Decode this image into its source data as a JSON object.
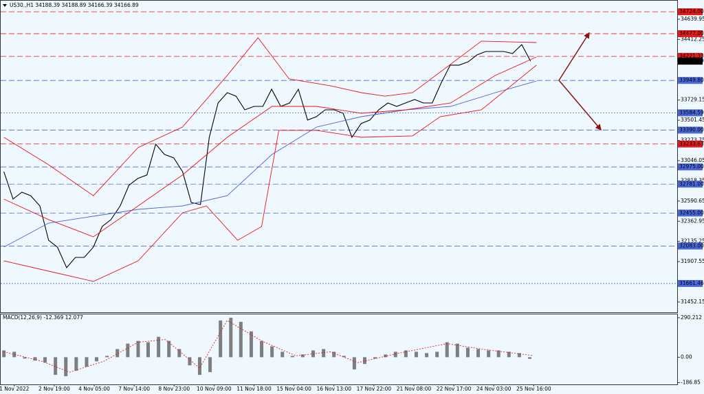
{
  "chart_data": [
    {
      "type": "line",
      "title": "US30.,H1  34188.39 34188.89 34166.39 34166.89",
      "xlim": [
        -0.34,
        16.59
      ],
      "ylim": [
        31336,
        34818
      ],
      "yticks": [
        34639.95,
        34412.25,
        33729.15,
        33501.45,
        33273.75,
        33046.05,
        32818.35,
        32590.65,
        32362.95,
        32135.25,
        31907.55,
        31452.15
      ],
      "series": [
        {
          "color": "#000000",
          "dash": "solid",
          "x": [
            -0.26,
            -0.03,
            0.19,
            0.41,
            0.64,
            0.86,
            1.08,
            1.31,
            1.53,
            1.75,
            1.98,
            2.2,
            2.42,
            2.65,
            2.87,
            3.09,
            3.32,
            3.54,
            3.76,
            3.99,
            4.21,
            4.43,
            4.66,
            4.88,
            5.1,
            5.33,
            5.55,
            5.77,
            6.0,
            6.22,
            6.44,
            6.67,
            6.89,
            7.11,
            7.34,
            7.56,
            7.78,
            8.01,
            8.23,
            8.45,
            8.68,
            8.9,
            9.12,
            9.35,
            9.57,
            9.79,
            10.02,
            10.24,
            10.46,
            10.69,
            10.91,
            11.13,
            11.36,
            11.58,
            11.8,
            12.03,
            12.25,
            12.47,
            12.7,
            12.92
          ],
          "values": [
            32922,
            32613,
            32690,
            32651,
            32535,
            32148,
            32071,
            31839,
            31955,
            31955,
            32071,
            32303,
            32381,
            32535,
            32768,
            32845,
            32884,
            33232,
            33116,
            33077,
            32922,
            32574,
            32551,
            33309,
            33696,
            33812,
            33773,
            33619,
            33657,
            33657,
            33851,
            33657,
            33696,
            33851,
            33503,
            33541,
            33619,
            33619,
            33580,
            33309,
            33464,
            33503,
            33619,
            33696,
            33657,
            33696,
            33735,
            33696,
            33696,
            33928,
            34122,
            34122,
            34160,
            34238,
            34276,
            34276,
            34276,
            34253,
            34354,
            34166.89
          ]
        },
        {
          "color": "#4a5fd6",
          "dash": "solid",
          "x": [
            -0.26,
            0.86,
            1.98,
            3.1,
            4.21,
            5.33,
            6.45,
            7.57,
            8.68,
            9.8,
            10.92,
            12.04,
            13.07
          ],
          "values": [
            32071,
            32342,
            32419,
            32497,
            32535,
            32651,
            33116,
            33425,
            33541,
            33619,
            33657,
            33812,
            33944
          ]
        },
        {
          "color": "#ee1111",
          "dash": "solid",
          "x": [
            -0.26,
            0.86,
            1.98,
            3.1,
            4.21,
            5.33,
            6.1,
            6.88,
            7.91,
            8.68,
            9.28,
            9.97,
            10.66,
            11.69,
            13.07
          ],
          "values": [
            33309,
            33000,
            32651,
            33193,
            33425,
            34006,
            34431,
            33967,
            33890,
            33812,
            33773,
            33812,
            34044,
            34393,
            34377
          ]
        },
        {
          "color": "#ee1111",
          "dash": "solid",
          "x": [
            -0.26,
            0.86,
            1.98,
            3.1,
            4.21,
            5.33,
            6.45,
            7.57,
            8.68,
            9.8,
            10.92,
            12.04,
            13.07
          ],
          "values": [
            32613,
            32381,
            32187,
            32535,
            32884,
            33309,
            33657,
            33657,
            33580,
            33619,
            33696,
            34006,
            34215
          ]
        },
        {
          "color": "#ee1111",
          "dash": "solid",
          "x": [
            -0.26,
            0.86,
            1.98,
            3.1,
            4.21,
            4.81,
            5.59,
            6.19,
            6.62,
            7.57,
            8.68,
            9.97,
            10.66,
            11.69,
            13.07
          ],
          "values": [
            31916,
            31800,
            31684,
            31916,
            32458,
            32535,
            32148,
            32303,
            33387,
            33387,
            33309,
            33325,
            33541,
            33619,
            34122
          ]
        }
      ],
      "levels": [
        {
          "price": 34724,
          "label": "34724.00",
          "color": "#e31b1b",
          "dash": "dashed"
        },
        {
          "price": 34477,
          "label": "34477.00",
          "color": "#e31b1b",
          "dash": "dashed"
        },
        {
          "price": 34221.33,
          "color": "#e31b1b",
          "dash": "dashed"
        },
        {
          "price": 34166.89,
          "color": "#000000",
          "dash": "none"
        },
        {
          "price": 33949.8,
          "label": "33949.80",
          "color": "#4a68d8",
          "dash": "dashed"
        },
        {
          "price": 33584.59,
          "color": "#4a68d8",
          "dash": "dotted"
        },
        {
          "price": 33390,
          "label": "33390.00",
          "color": "#4a68d8",
          "dash": "dashed"
        },
        {
          "price": 33233.63,
          "color": "#e31b1b",
          "dash": "dashed"
        },
        {
          "price": 32975,
          "label": "32975.00",
          "color": "#4a68d8",
          "dash": "dashed"
        },
        {
          "price": 32781,
          "label": "32781.00",
          "color": "#4a68d8",
          "dash": "dashed"
        },
        {
          "price": 32455,
          "label": "32455.00",
          "color": "#4a68d8",
          "dash": "dashed"
        },
        {
          "price": 32083,
          "label": "32083.00",
          "color": "#4a68d8",
          "dash": "dashed"
        },
        {
          "price": 31661.46,
          "color": "#4a68d8",
          "dash": "dotted"
        }
      ]
    },
    {
      "type": "bar",
      "title": "MACD(12,26,9) -12.369 12.077",
      "xlim": [
        -0.34,
        16.59
      ],
      "xticks": [
        {
          "value": 0,
          "label": "1 Nov 2022"
        },
        {
          "value": 1,
          "label": "2 Nov 19:00"
        },
        {
          "value": 2,
          "label": "4 Nov 05:00"
        },
        {
          "value": 3,
          "label": "7 Nov 14:00"
        },
        {
          "value": 4,
          "label": "8 Nov 23:00"
        },
        {
          "value": 5,
          "label": "10 Nov 09:00"
        },
        {
          "value": 6,
          "label": "11 Nov 18:00"
        },
        {
          "value": 7,
          "label": "15 Nov 04:00"
        },
        {
          "value": 8,
          "label": "16 Nov 13:00"
        },
        {
          "value": 9,
          "label": "17 Nov 22:00"
        },
        {
          "value": 10,
          "label": "21 Nov 08:00"
        },
        {
          "value": 11,
          "label": "22 Nov 17:00"
        },
        {
          "value": 12,
          "label": "24 Nov 03:00"
        },
        {
          "value": 13,
          "label": "25 Nov 16:00"
        }
      ],
      "ylim": [
        -200,
        315
      ],
      "yticks": [
        290.212,
        {
          "value": 0,
          "label": "0.00"
        },
        -186.85
      ],
      "series": [
        {
          "type": "bar",
          "color": "#555555",
          "x": [
            -0.26,
            0,
            0.26,
            0.52,
            0.77,
            1.03,
            1.29,
            1.55,
            1.81,
            2.06,
            2.32,
            2.58,
            2.84,
            3.1,
            3.35,
            3.61,
            3.87,
            4.13,
            4.39,
            4.64,
            4.9,
            5.16,
            5.42,
            5.67,
            5.93,
            6.19,
            6.45,
            6.71,
            6.96,
            7.22,
            7.48,
            7.74,
            8.0,
            8.25,
            8.51,
            8.77,
            9.03,
            9.29,
            9.54,
            9.8,
            10.06,
            10.32,
            10.58,
            10.83,
            11.09,
            11.35,
            11.61,
            11.87,
            12.12,
            12.38,
            12.64,
            12.9
          ],
          "values": [
            50,
            40,
            -10,
            -25,
            -40,
            -130,
            -140,
            -100,
            -70,
            -30,
            10,
            60,
            100,
            120,
            110,
            150,
            120,
            60,
            -60,
            -130,
            -110,
            270,
            290,
            260,
            190,
            120,
            80,
            40,
            10,
            20,
            50,
            60,
            40,
            10,
            -90,
            -50,
            -10,
            20,
            40,
            50,
            40,
            30,
            40,
            110,
            100,
            70,
            60,
            50,
            50,
            40,
            30,
            -12
          ]
        },
        {
          "type": "line",
          "color": "#e31b1b",
          "dash": "dotted",
          "x": [
            -0.26,
            0.69,
            1.38,
            2.24,
            3.1,
            3.78,
            4.64,
            5.33,
            6.19,
            7.05,
            7.91,
            8.6,
            9.63,
            10.83,
            11.69,
            12.98
          ],
          "values": [
            40,
            -30,
            -110,
            -30,
            110,
            130,
            -80,
            270,
            120,
            10,
            40,
            -40,
            30,
            100,
            60,
            12
          ]
        }
      ]
    }
  ]
}
